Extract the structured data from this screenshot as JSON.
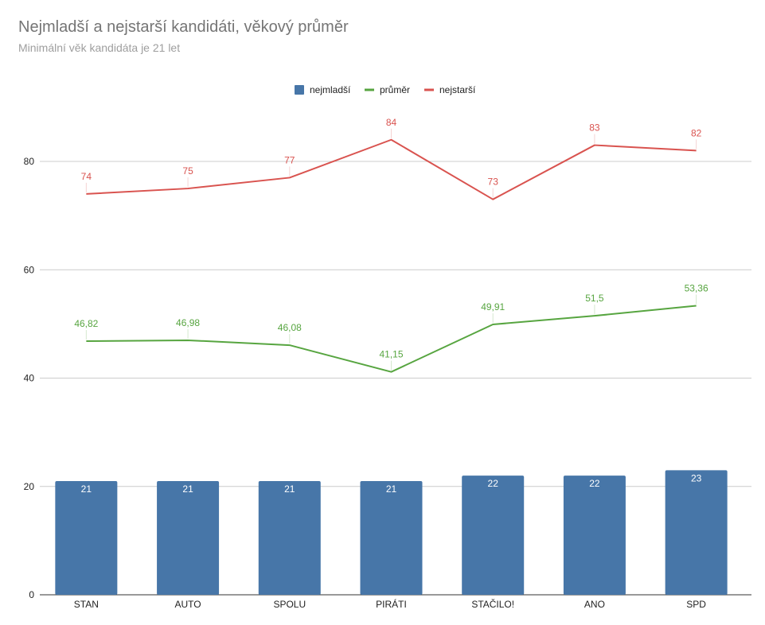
{
  "chart_data": {
    "type": "bar",
    "title": "Nejmladší a nejstarší kandidáti, věkový průměr",
    "subtitle": "Minimální věk kandidáta je 21 let",
    "categories": [
      "STAN",
      "AUTO",
      "SPOLU",
      "PIRÁTI",
      "STAČILO!",
      "ANO",
      "SPD"
    ],
    "series": [
      {
        "name": "nejmladší",
        "type": "bar",
        "color": "#4776a8",
        "values": [
          21,
          21,
          21,
          21,
          22,
          22,
          23
        ],
        "labels": [
          "21",
          "21",
          "21",
          "21",
          "22",
          "22",
          "23"
        ]
      },
      {
        "name": "průměr",
        "type": "line",
        "color": "#57a540",
        "values": [
          46.82,
          46.98,
          46.08,
          41.15,
          49.91,
          51.5,
          53.36
        ],
        "labels": [
          "46,82",
          "46,98",
          "46,08",
          "41,15",
          "49,91",
          "51,5",
          "53,36"
        ]
      },
      {
        "name": "nejstarší",
        "type": "line",
        "color": "#d9534f",
        "values": [
          74,
          75,
          77,
          84,
          73,
          83,
          82
        ],
        "labels": [
          "74",
          "75",
          "77",
          "84",
          "73",
          "83",
          "82"
        ]
      }
    ],
    "ylim": [
      0,
      80
    ],
    "yticks": [
      0,
      20,
      40,
      60,
      80
    ],
    "grid": true,
    "legend": "top-center"
  }
}
